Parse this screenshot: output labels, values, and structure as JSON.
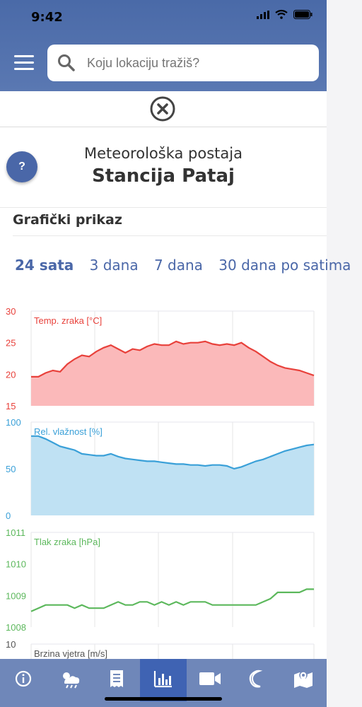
{
  "status": {
    "time": "9:42"
  },
  "search": {
    "placeholder": "Koju lokaciju tražiš?"
  },
  "station": {
    "subtitle": "Meteorološka postaja",
    "name": "Stancija Pataj"
  },
  "help_label": "?",
  "section_title": "Grafički prikaz",
  "tabs": [
    {
      "label": "24 sata",
      "active": true
    },
    {
      "label": "3 dana",
      "active": false
    },
    {
      "label": "7 dana",
      "active": false
    },
    {
      "label": "30 dana po satima",
      "active": false
    }
  ],
  "colors": {
    "temp": "#e8413b",
    "humidity": "#3aa0d8",
    "pressure": "#5cb85c",
    "wind": "#555555",
    "accent": "#4a67a8"
  },
  "chart_data": [
    {
      "type": "area",
      "title": "Temp. zraka [°C]",
      "ylim": [
        15,
        30
      ],
      "yticks": [
        30,
        25,
        20,
        15
      ],
      "values": [
        19.6,
        19.6,
        20.2,
        20.6,
        20.4,
        21.6,
        22.4,
        23.0,
        22.8,
        23.6,
        24.2,
        24.6,
        24.0,
        23.4,
        24.0,
        23.8,
        24.4,
        24.8,
        24.6,
        24.6,
        25.2,
        24.8,
        25.0,
        25.0,
        25.2,
        24.8,
        24.6,
        24.8,
        24.6,
        25.0,
        24.2,
        23.6,
        22.8,
        22.0,
        21.4,
        21.0,
        20.8,
        20.6,
        20.2,
        19.8
      ]
    },
    {
      "type": "area",
      "title": "Rel. vlažnost [%]",
      "ylim": [
        0,
        100
      ],
      "yticks": [
        100,
        50,
        0
      ],
      "values": [
        85,
        85,
        82,
        78,
        74,
        72,
        70,
        66,
        65,
        64,
        64,
        66,
        63,
        61,
        60,
        59,
        58,
        58,
        57,
        56,
        55,
        55,
        54,
        54,
        53,
        54,
        54,
        53,
        50,
        52,
        55,
        58,
        60,
        63,
        66,
        69,
        71,
        73,
        75,
        76
      ]
    },
    {
      "type": "line",
      "title": "Tlak zraka [hPa]",
      "ylim": [
        1008,
        1011
      ],
      "yticks": [
        1011,
        1010,
        1009,
        1008
      ],
      "values": [
        1008.5,
        1008.6,
        1008.7,
        1008.7,
        1008.7,
        1008.7,
        1008.6,
        1008.7,
        1008.6,
        1008.6,
        1008.6,
        1008.7,
        1008.8,
        1008.7,
        1008.7,
        1008.8,
        1008.8,
        1008.7,
        1008.8,
        1008.7,
        1008.8,
        1008.7,
        1008.8,
        1008.8,
        1008.8,
        1008.7,
        1008.7,
        1008.7,
        1008.7,
        1008.7,
        1008.7,
        1008.7,
        1008.8,
        1008.9,
        1009.1,
        1009.1,
        1009.1,
        1009.1,
        1009.2,
        1009.2
      ]
    },
    {
      "type": "line",
      "title": "Brzina vjetra [m/s]",
      "ylim": [
        0,
        10
      ],
      "yticks": [
        10
      ],
      "values": []
    }
  ],
  "tabbar": [
    {
      "icon": "info-icon",
      "active": false
    },
    {
      "icon": "weather-icon",
      "active": false
    },
    {
      "icon": "report-icon",
      "active": false
    },
    {
      "icon": "chart-icon",
      "active": true
    },
    {
      "icon": "camera-icon",
      "active": false
    },
    {
      "icon": "moon-icon",
      "active": false
    },
    {
      "icon": "map-icon",
      "active": false
    }
  ]
}
